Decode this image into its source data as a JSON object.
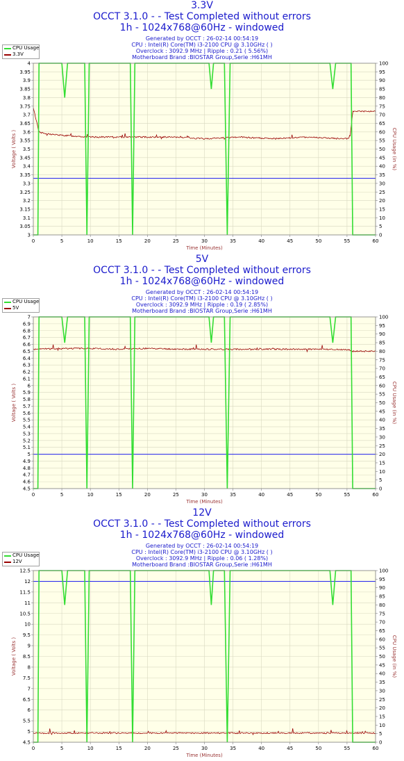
{
  "colors": {
    "cpu": "#33dd33",
    "voltage": "#990000",
    "reference": "#2222ee",
    "plot_bg": "#ffffe8",
    "grid": "#d8d8c0",
    "title": "#1a1acc",
    "axis_label": "#993333"
  },
  "charts": [
    {
      "title": "3.3V",
      "subtitle": "OCCT 3.1.0 -  - Test Completed without errors",
      "subtitle2": "1h - 1024x768@60Hz - windowed",
      "generated": "Generated by OCCT : 26-02-14 00:54:19",
      "cpu": "CPU : Intel(R) Core(TM) i3-2100 CPU @ 3.10GHz (  )",
      "overclock": "Overclock : 3092.9 MHz | Ripple : 0.21 ( 5.56%)",
      "motherboard": "Motherboard Brand :BIOSTAR Group,Serie :H61MH",
      "legend": [
        "CPU Usage",
        "3.3V"
      ]
    },
    {
      "title": "5V",
      "subtitle": "OCCT 3.1.0 -  - Test Completed without errors",
      "subtitle2": "1h - 1024x768@60Hz - windowed",
      "generated": "Generated by OCCT : 26-02-14 00:54:19",
      "cpu": "CPU : Intel(R) Core(TM) i3-2100 CPU @ 3.10GHz (  )",
      "overclock": "Overclock : 3092.9 MHz | Ripple : 0.19 ( 2.85%)",
      "motherboard": "Motherboard Brand :BIOSTAR Group,Serie :H61MH",
      "legend": [
        "CPU Usage",
        "5V"
      ]
    },
    {
      "title": "12V",
      "subtitle": "OCCT 3.1.0 -  - Test Completed without errors",
      "subtitle2": "1h - 1024x768@60Hz - windowed",
      "generated": "Generated by OCCT : 26-02-14 00:54:19",
      "cpu": "CPU : Intel(R) Core(TM) i3-2100 CPU @ 3.10GHz (  )",
      "overclock": "Overclock : 3092.9 MHz | Ripple : 0.06 ( 1.28%)",
      "motherboard": "Motherboard Brand :BIOSTAR Group,Serie :H61MH",
      "legend": [
        "CPU Usage",
        "12V"
      ]
    }
  ],
  "chart_data": [
    {
      "type": "line",
      "title": "3.3V",
      "xlabel": "Time (Minutes)",
      "ylabel": "Voltage ( Volts )",
      "y2label": "CPU Usage (in %)",
      "xlim": [
        0,
        60
      ],
      "ylim": [
        3,
        4
      ],
      "y2lim": [
        0,
        100
      ],
      "xticks": [
        "0",
        "5",
        "10",
        "15",
        "20",
        "25",
        "30",
        "35",
        "40",
        "45",
        "50",
        "55",
        "60"
      ],
      "yticks": [
        "3",
        "3.05",
        "3.1",
        "3.15",
        "3.2",
        "3.25",
        "3.3",
        "3.35",
        "3.4",
        "3.45",
        "3.5",
        "3.55",
        "3.6",
        "3.65",
        "3.7",
        "3.75",
        "3.8",
        "3.85",
        "3.9",
        "3.95",
        "4"
      ],
      "y2ticks": [
        "0",
        "5",
        "10",
        "15",
        "20",
        "25",
        "30",
        "35",
        "40",
        "45",
        "50",
        "55",
        "60",
        "65",
        "70",
        "75",
        "80",
        "85",
        "90",
        "95",
        "100"
      ],
      "reference_line": 3.33,
      "series": [
        {
          "name": "3.3V",
          "axis": "left",
          "x": [
            0,
            1,
            2,
            5,
            10,
            17,
            24,
            30,
            36,
            42,
            48,
            54,
            55.5,
            56,
            60
          ],
          "y": [
            3.74,
            3.6,
            3.59,
            3.58,
            3.57,
            3.57,
            3.57,
            3.56,
            3.57,
            3.56,
            3.57,
            3.56,
            3.56,
            3.72,
            3.72
          ]
        },
        {
          "name": "CPU Usage",
          "axis": "right",
          "x": [
            0,
            0.8,
            1,
            5,
            5.5,
            6,
            9,
            9.4,
            9.8,
            17,
            17.4,
            17.8,
            30.8,
            31.2,
            31.6,
            33.5,
            34,
            34.5,
            52,
            52.5,
            53,
            55.7,
            56,
            60
          ],
          "y": [
            0,
            0,
            100,
            100,
            80,
            100,
            100,
            0,
            100,
            100,
            0,
            100,
            100,
            85,
            100,
            100,
            0,
            100,
            100,
            85,
            100,
            100,
            0,
            0
          ]
        }
      ]
    },
    {
      "type": "line",
      "title": "5V",
      "xlabel": "Time (Minutes)",
      "ylabel": "Voltage ( Volts )",
      "y2label": "CPU Usage (in %)",
      "xlim": [
        0,
        60
      ],
      "ylim": [
        4.5,
        7
      ],
      "y2lim": [
        0,
        100
      ],
      "xticks": [
        "0",
        "5",
        "10",
        "15",
        "20",
        "25",
        "30",
        "35",
        "40",
        "45",
        "50",
        "55",
        "60"
      ],
      "yticks": [
        "4.5",
        "4.6",
        "4.7",
        "4.8",
        "4.9",
        "5",
        "5.1",
        "5.2",
        "5.3",
        "5.4",
        "5.5",
        "5.6",
        "5.7",
        "5.8",
        "5.9",
        "6",
        "6.1",
        "6.2",
        "6.3",
        "6.4",
        "6.5",
        "6.6",
        "6.7",
        "6.8",
        "6.9",
        "7"
      ],
      "y2ticks": [
        "0",
        "5",
        "10",
        "15",
        "20",
        "25",
        "30",
        "35",
        "40",
        "45",
        "50",
        "55",
        "60",
        "65",
        "70",
        "75",
        "80",
        "85",
        "90",
        "95",
        "100"
      ],
      "reference_line": 5.0,
      "series": [
        {
          "name": "5V",
          "axis": "left",
          "x": [
            0,
            5,
            10,
            15,
            20,
            25,
            30,
            35,
            40,
            45,
            50,
            55.5,
            56,
            60
          ],
          "y": [
            6.53,
            6.54,
            6.54,
            6.53,
            6.54,
            6.53,
            6.53,
            6.53,
            6.53,
            6.53,
            6.53,
            6.52,
            6.5,
            6.5
          ]
        },
        {
          "name": "CPU Usage",
          "axis": "right",
          "x": [
            0,
            0.8,
            1,
            5,
            5.5,
            6,
            9,
            9.4,
            9.8,
            17,
            17.4,
            17.8,
            30.8,
            31.2,
            31.6,
            33.5,
            34,
            34.5,
            52,
            52.5,
            53,
            55.7,
            56,
            60
          ],
          "y": [
            0,
            0,
            100,
            100,
            85,
            100,
            100,
            0,
            100,
            100,
            0,
            100,
            100,
            85,
            100,
            100,
            0,
            100,
            100,
            85,
            100,
            100,
            0,
            0
          ]
        }
      ]
    },
    {
      "type": "line",
      "title": "12V",
      "xlabel": "Time (Minutes)",
      "ylabel": "Voltage ( Volts )",
      "y2label": "CPU Usage (in %)",
      "xlim": [
        0,
        60
      ],
      "ylim": [
        4.5,
        12.5
      ],
      "y2lim": [
        0,
        100
      ],
      "xticks": [
        "0",
        "5",
        "10",
        "15",
        "20",
        "25",
        "30",
        "35",
        "40",
        "45",
        "50",
        "55",
        "60"
      ],
      "yticks": [
        "4.5",
        "5",
        "5.5",
        "6",
        "6.5",
        "7",
        "7.5",
        "8",
        "8.5",
        "9",
        "9.5",
        "10",
        "10.5",
        "11",
        "11.5",
        "12",
        "12.5"
      ],
      "y2ticks": [
        "0",
        "5",
        "10",
        "15",
        "20",
        "25",
        "30",
        "35",
        "40",
        "45",
        "50",
        "55",
        "60",
        "65",
        "70",
        "75",
        "80",
        "85",
        "90",
        "95",
        "100"
      ],
      "reference_line": 12.0,
      "series": [
        {
          "name": "12V",
          "axis": "left",
          "x": [
            0,
            10,
            20,
            30,
            40,
            50,
            60
          ],
          "y": [
            4.93,
            4.93,
            4.93,
            4.93,
            4.93,
            4.93,
            4.93
          ]
        },
        {
          "name": "CPU Usage",
          "axis": "right",
          "x": [
            0,
            0.8,
            1,
            5,
            5.5,
            6,
            9,
            9.4,
            9.8,
            17,
            17.4,
            17.8,
            30.8,
            31.2,
            31.6,
            33.5,
            34,
            34.5,
            52,
            52.5,
            53,
            55.7,
            56,
            60
          ],
          "y": [
            0,
            0,
            100,
            100,
            80,
            100,
            100,
            0,
            100,
            100,
            0,
            100,
            100,
            80,
            100,
            100,
            0,
            100,
            100,
            80,
            100,
            100,
            0,
            0
          ]
        }
      ]
    }
  ]
}
